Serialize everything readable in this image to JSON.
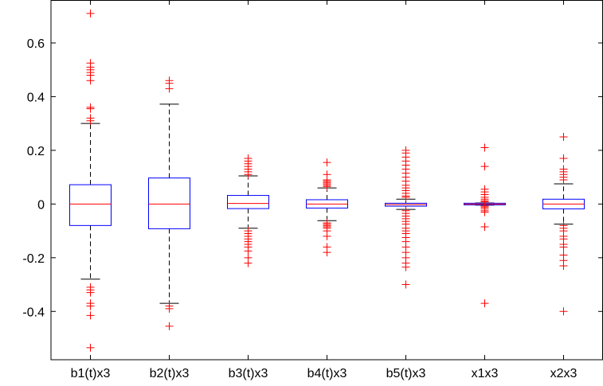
{
  "chart_data": {
    "type": "boxplot",
    "title": "",
    "xlabel": "",
    "ylabel": "",
    "ylim": [
      -0.58,
      0.76
    ],
    "yticks": [
      -0.4,
      -0.2,
      0,
      0.2,
      0.4,
      0.6
    ],
    "ytick_labels": [
      "-0.4",
      "-0.2",
      "0",
      "0.2",
      "0.4",
      "0.6"
    ],
    "grid": false,
    "colors": {
      "box": "#0000ff",
      "median": "#ff0000",
      "whisker": "#000000",
      "outlier": "#ff0000",
      "axes": "#000000"
    },
    "categories": [
      "b1(t)x3",
      "b2(t)x3",
      "b3(t)x3",
      "b4(t)x3",
      "b5(t)x3",
      "x1x3",
      "x2x3"
    ],
    "boxes": [
      {
        "label": "b1(t)x3",
        "q1": -0.08,
        "median": 0.0,
        "q3": 0.072,
        "whisker_low": -0.28,
        "whisker_high": 0.3,
        "outliers": [
          0.71,
          0.525,
          0.51,
          0.5,
          0.49,
          0.48,
          0.46,
          0.36,
          0.355,
          0.32,
          0.31,
          -0.31,
          -0.32,
          -0.33,
          -0.37,
          -0.38,
          -0.415,
          -0.535
        ]
      },
      {
        "label": "b2(t)x3",
        "q1": -0.092,
        "median": 0.0,
        "q3": 0.097,
        "whisker_low": -0.37,
        "whisker_high": 0.372,
        "outliers": [
          0.46,
          0.45,
          0.43,
          -0.38,
          -0.39,
          -0.455
        ]
      },
      {
        "label": "b3(t)x3",
        "q1": -0.017,
        "median": 0.002,
        "q3": 0.032,
        "whisker_low": -0.09,
        "whisker_high": 0.105,
        "outliers": [
          0.17,
          0.16,
          0.15,
          0.14,
          0.13,
          0.12,
          0.11,
          -0.1,
          -0.11,
          -0.12,
          -0.13,
          -0.14,
          -0.15,
          -0.16,
          -0.175,
          -0.2,
          -0.22
        ]
      },
      {
        "label": "b4(t)x3",
        "q1": -0.015,
        "median": 0.0,
        "q3": 0.016,
        "whisker_low": -0.062,
        "whisker_high": 0.06,
        "outliers": [
          0.155,
          0.11,
          0.09,
          0.085,
          0.08,
          0.075,
          0.07,
          0.065,
          -0.07,
          -0.075,
          -0.08,
          -0.085,
          -0.09,
          -0.1,
          -0.12,
          -0.16,
          -0.18
        ]
      },
      {
        "label": "b5(t)x3",
        "q1": -0.008,
        "median": -0.002,
        "q3": 0.003,
        "whisker_low": -0.02,
        "whisker_high": 0.018,
        "outliers": [
          0.2,
          0.19,
          0.175,
          0.16,
          0.145,
          0.13,
          0.115,
          0.1,
          0.085,
          0.07,
          0.06,
          0.05,
          0.04,
          0.03,
          0.025,
          -0.025,
          -0.035,
          -0.045,
          -0.055,
          -0.065,
          -0.075,
          -0.09,
          -0.1,
          -0.11,
          -0.125,
          -0.14,
          -0.16,
          -0.18,
          -0.2,
          -0.22,
          -0.235,
          -0.3
        ]
      },
      {
        "label": "x1x3",
        "q1": -0.003,
        "median": 0.0,
        "q3": 0.003,
        "whisker_low": -0.004,
        "whisker_high": 0.004,
        "outliers": [
          0.21,
          0.14,
          0.055,
          0.045,
          0.035,
          0.025,
          0.018,
          0.012,
          0.008,
          -0.008,
          -0.012,
          -0.018,
          -0.025,
          -0.03,
          -0.085,
          -0.37
        ]
      },
      {
        "label": "x2x3",
        "q1": -0.018,
        "median": 0.0,
        "q3": 0.018,
        "whisker_low": -0.075,
        "whisker_high": 0.075,
        "outliers": [
          0.25,
          0.17,
          0.13,
          0.12,
          0.11,
          0.1,
          0.09,
          -0.08,
          -0.09,
          -0.1,
          -0.12,
          -0.13,
          -0.15,
          -0.16,
          -0.19,
          -0.21,
          -0.23,
          -0.4
        ]
      }
    ]
  }
}
